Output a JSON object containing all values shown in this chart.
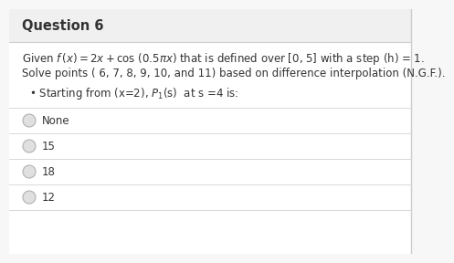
{
  "title": "Question 6",
  "title_fontsize": 10.5,
  "title_fontweight": "bold",
  "bg_color": "#f7f7f7",
  "content_bg": "#ffffff",
  "header_bg": "#f0f0f0",
  "body_text_line1": "Given $f\\,(x) = 2x + \\cos\\,(0.5\\pi x)$ that is defined over [0, 5] with a step (h) = 1.",
  "body_text_line2": "Solve points ( 6, 7, 8, 9, 10, and 11) based on difference interpolation (N.G.F.).",
  "bullet_text": "Starting from (x=2), $P_1$(s)  at s =4 is:",
  "options": [
    "None",
    "15",
    "18",
    "12"
  ],
  "divider_color": "#d8d8d8",
  "text_color": "#333333",
  "radio_outer_color": "#b0b0b0",
  "radio_inner_color": "#e0e0e0",
  "header_border_color": "#cccccc",
  "right_border_color": "#cccccc",
  "body_fontsize": 8.5,
  "option_fontsize": 8.5,
  "bullet_fontsize": 8.5
}
